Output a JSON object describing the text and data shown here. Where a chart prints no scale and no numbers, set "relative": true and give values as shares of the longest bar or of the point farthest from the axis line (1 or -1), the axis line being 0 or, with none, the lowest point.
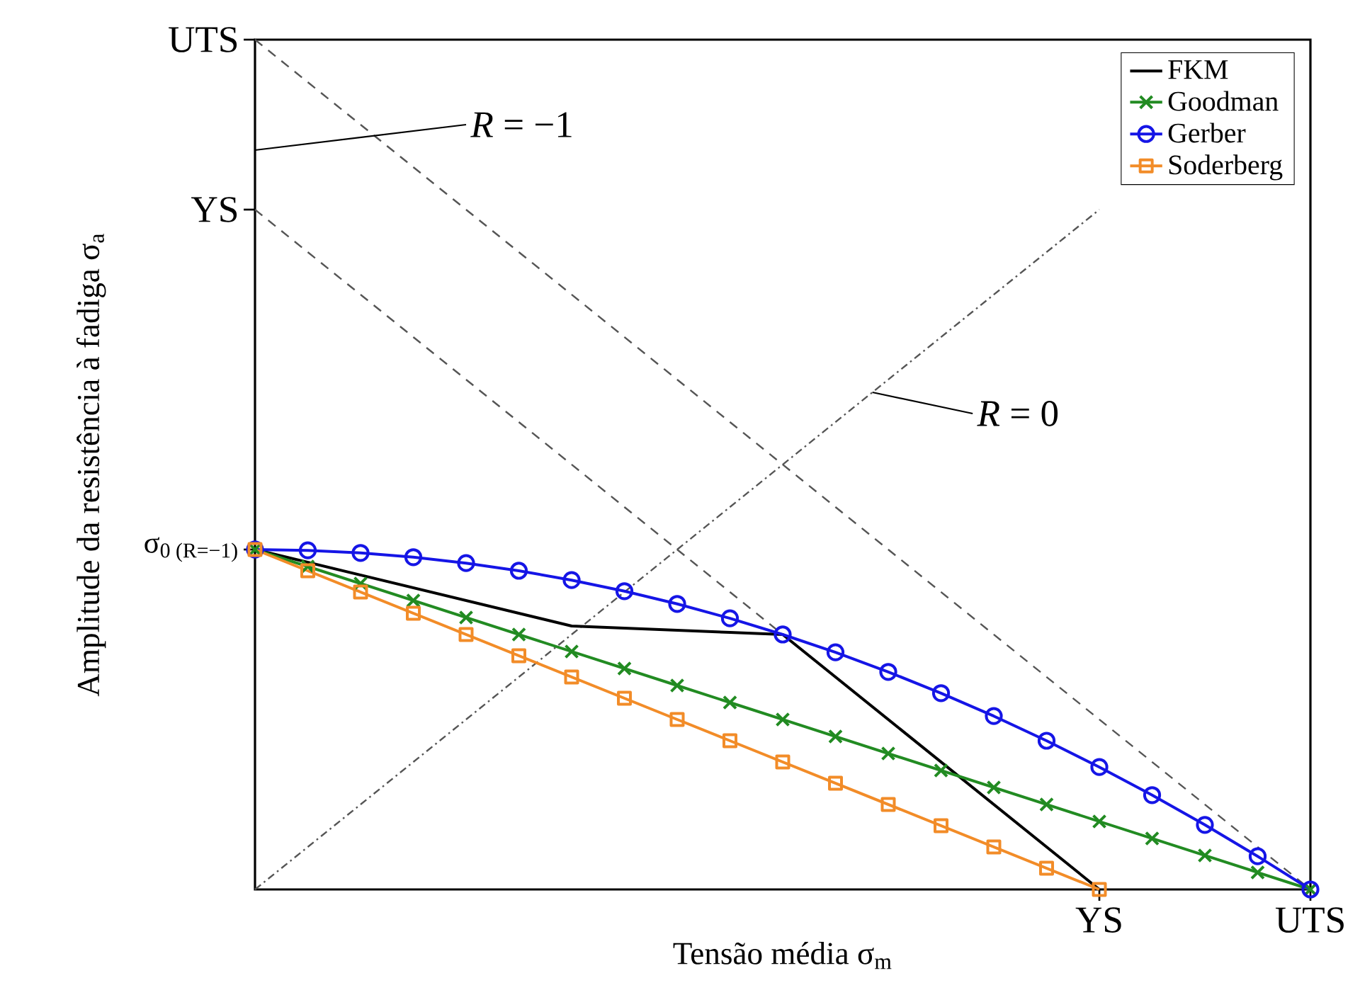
{
  "chart_data": {
    "type": "line",
    "relative": true,
    "xlabel": "Tensão média σ$_{m}$",
    "ylabel": "Amplitude da resistência à fadiga σ$_{a}$",
    "categories": [
      null,
      null,
      null,
      null,
      null,
      null,
      null,
      null,
      null,
      null,
      null,
      null,
      null,
      null,
      null,
      null,
      "YS",
      null,
      null,
      null,
      "UTS"
    ],
    "legend": "top right",
    "annotations": [
      "UTS",
      "YS",
      "σ$_{0 (R=−1)}$",
      "*R* = −1",
      "*R* = 0"
    ],
    "series": [
      {
        "color": "#555555",
        "line_style": "dashed",
        "marker": "none",
        "values": [
          1,
          0.95,
          0.9,
          0.85,
          0.8,
          0.75,
          0.7,
          0.65,
          0.6,
          0.55,
          0.5,
          0.45,
          0.4,
          0.35,
          0.3,
          0.25,
          0.2,
          0.15,
          0.1,
          0.05,
          0
        ]
      },
      {
        "color": "#555555",
        "line_style": "dashed",
        "marker": "none",
        "values": [
          0.8,
          0.75,
          0.7,
          0.65,
          0.6,
          0.55,
          0.5,
          0.45,
          0.4,
          0.35,
          0.3,
          0.25,
          0.2,
          0.15,
          0.1,
          0.05,
          0,
          null,
          null,
          null,
          null
        ]
      },
      {
        "color": "#555555",
        "line_style": "dotted",
        "marker": "none",
        "values": [
          0,
          0.05,
          0.1,
          0.15,
          0.2,
          0.25,
          0.3,
          0.35,
          0.4,
          0.45,
          0.5,
          0.55,
          0.6,
          0.65,
          0.7,
          0.75,
          0.8,
          null,
          null,
          null,
          null
        ]
      },
      {
        "name": "FKM",
        "color": "#000000",
        "marker": "none",
        "values": [
          0.4,
          0.385,
          0.37,
          0.355,
          0.34,
          0.325,
          0.31,
          0.3075,
          0.305,
          0.3025,
          0.3,
          0.25,
          0.2,
          0.15,
          0.1,
          0.05,
          0,
          null,
          null,
          null,
          null
        ]
      },
      {
        "name": "Goodman",
        "color": "#228b22",
        "marker": "cross",
        "values": [
          0.4,
          0.38,
          0.36,
          0.34,
          0.32,
          0.3,
          0.28,
          0.26,
          0.24,
          0.22,
          0.2,
          0.18,
          0.16,
          0.14,
          0.12,
          0.1,
          0.08,
          0.06,
          0.04,
          0.02,
          0
        ]
      },
      {
        "name": "Gerber",
        "color": "#1515e6",
        "marker": "circle",
        "values": [
          0.4,
          0.399,
          0.396,
          0.391,
          0.384,
          0.375,
          0.364,
          0.351,
          0.336,
          0.319,
          0.3,
          0.279,
          0.256,
          0.231,
          0.204,
          0.175,
          0.144,
          0.111,
          0.076,
          0.039,
          0
        ]
      },
      {
        "name": "Soderberg",
        "color": "#f28c28",
        "marker": "square",
        "values": [
          0.4,
          0.375,
          0.35,
          0.325,
          0.3,
          0.275,
          0.25,
          0.225,
          0.2,
          0.175,
          0.15,
          0.125,
          0.1,
          0.075,
          0.05,
          0.025,
          0,
          null,
          null,
          null,
          null
        ]
      }
    ]
  }
}
